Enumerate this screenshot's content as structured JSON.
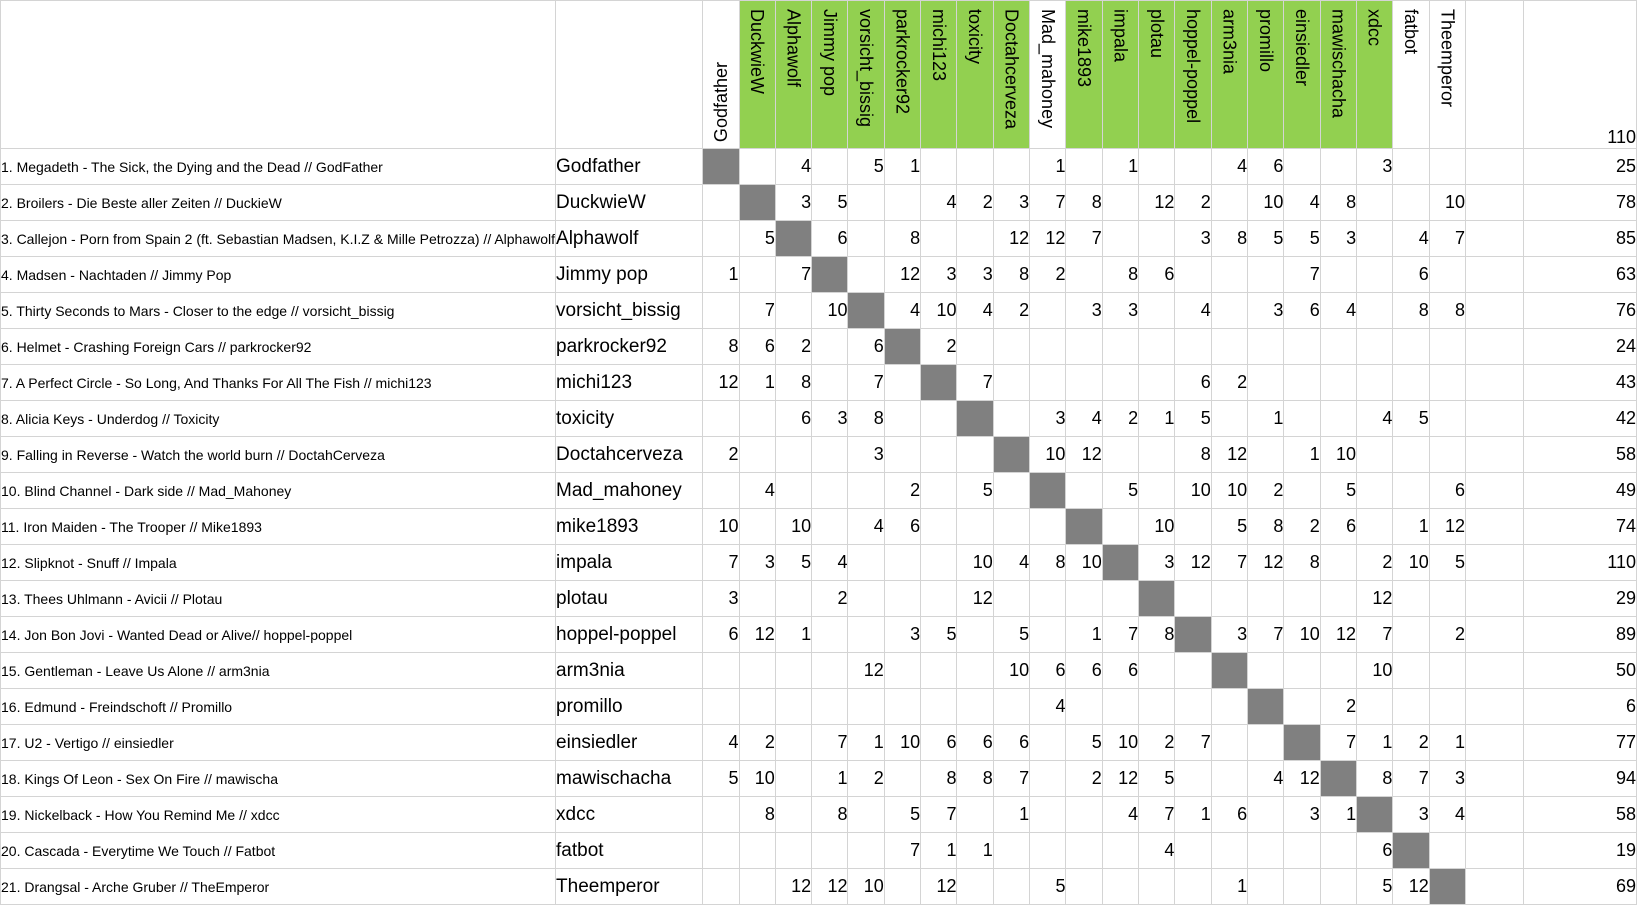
{
  "columns": [
    {
      "label": "Godfather",
      "green": false
    },
    {
      "label": "DuckwieW",
      "green": true
    },
    {
      "label": "Alphawolf",
      "green": true
    },
    {
      "label": "Jimmy pop",
      "green": true
    },
    {
      "label": "vorsicht_bissig",
      "green": true
    },
    {
      "label": "parkrocker92",
      "green": true
    },
    {
      "label": "michi123",
      "green": true
    },
    {
      "label": "toxicity",
      "green": true
    },
    {
      "label": "Doctahcerveza",
      "green": true
    },
    {
      "label": "Mad_mahoney",
      "green": false
    },
    {
      "label": "mike1893",
      "green": true
    },
    {
      "label": "impala",
      "green": true
    },
    {
      "label": "plotau",
      "green": true
    },
    {
      "label": "hoppel-poppel",
      "green": true
    },
    {
      "label": "arm3nia",
      "green": true
    },
    {
      "label": "promillo",
      "green": true
    },
    {
      "label": "einsiedler",
      "green": true
    },
    {
      "label": "mawischacha",
      "green": true
    },
    {
      "label": "xdcc",
      "green": true
    },
    {
      "label": "fatbot",
      "green": false
    },
    {
      "label": "Theemperor",
      "green": false
    }
  ],
  "header_total": "110",
  "rows": [
    {
      "song": "1. Megadeth - The Sick, the Dying and the Dead // GodFather",
      "name": "Godfather",
      "votes": [
        "",
        "",
        "4",
        "",
        "5",
        "1",
        "",
        "",
        "",
        "1",
        "",
        "1",
        "",
        "",
        "4",
        "6",
        "",
        "",
        "3",
        "",
        ""
      ],
      "total": "25"
    },
    {
      "song": "2. Broilers - Die Beste aller Zeiten // DuckieW",
      "name": "DuckwieW",
      "votes": [
        "",
        "",
        "3",
        "5",
        "",
        "",
        "4",
        "2",
        "3",
        "7",
        "8",
        "",
        "12",
        "2",
        "",
        "10",
        "4",
        "8",
        "",
        "",
        "10"
      ],
      "total": "78"
    },
    {
      "song": "3. Callejon - Porn from Spain 2 (ft. Sebastian Madsen, K.I.Z & Mille Petrozza) // Alphawolf",
      "name": "Alphawolf",
      "votes": [
        "",
        "5",
        "",
        "6",
        "",
        "8",
        "",
        "",
        "12",
        "12",
        "7",
        "",
        "",
        "3",
        "8",
        "5",
        "5",
        "3",
        "",
        "4",
        "7"
      ],
      "total": "85"
    },
    {
      "song": "4. Madsen - Nachtaden // Jimmy Pop",
      "name": "Jimmy pop",
      "votes": [
        "1",
        "",
        "7",
        "",
        "",
        "12",
        "3",
        "3",
        "8",
        "2",
        "",
        "8",
        "6",
        "",
        "",
        "",
        "7",
        "",
        "",
        "6",
        ""
      ],
      "total": "63"
    },
    {
      "song": "5. Thirty Seconds to Mars - Closer to the edge // vorsicht_bissig",
      "name": "vorsicht_bissig",
      "votes": [
        "",
        "7",
        "",
        "10",
        "",
        "4",
        "10",
        "4",
        "2",
        "",
        "3",
        "3",
        "",
        "4",
        "",
        "3",
        "6",
        "4",
        "",
        "8",
        "8"
      ],
      "total": "76"
    },
    {
      "song": "6. Helmet - Crashing Foreign Cars // parkrocker92",
      "name": "parkrocker92",
      "votes": [
        "8",
        "6",
        "2",
        "",
        "6",
        "",
        "2",
        "",
        "",
        "",
        "",
        "",
        "",
        "",
        "",
        "",
        "",
        "",
        "",
        "",
        ""
      ],
      "total": "24"
    },
    {
      "song": "7. A Perfect Circle - So Long, And Thanks For All The Fish // michi123",
      "name": "michi123",
      "votes": [
        "12",
        "1",
        "8",
        "",
        "7",
        "",
        "",
        "7",
        "",
        "",
        "",
        "",
        "",
        "6",
        "2",
        "",
        "",
        "",
        "",
        "",
        ""
      ],
      "total": "43"
    },
    {
      "song": "8. Alicia Keys - Underdog // Toxicity",
      "name": "toxicity",
      "votes": [
        "",
        "",
        "6",
        "3",
        "8",
        "",
        "",
        "",
        "",
        "3",
        "4",
        "2",
        "1",
        "5",
        "",
        "1",
        "",
        "",
        "4",
        "5",
        ""
      ],
      "total": "42"
    },
    {
      "song": "9. Falling in Reverse - Watch the world burn // DoctahCerveza",
      "name": "Doctahcerveza",
      "votes": [
        "2",
        "",
        "",
        "",
        "3",
        "",
        "",
        "",
        "",
        "10",
        "12",
        "",
        "",
        "8",
        "12",
        "",
        "1",
        "10",
        "",
        "",
        ""
      ],
      "total": "58"
    },
    {
      "song": "10. Blind Channel - Dark side // Mad_Mahoney",
      "name": "Mad_mahoney",
      "votes": [
        "",
        "4",
        "",
        "",
        "",
        "2",
        "",
        "5",
        "",
        "",
        "",
        "5",
        "",
        "10",
        "10",
        "2",
        "",
        "5",
        "",
        "",
        "6"
      ],
      "total": "49"
    },
    {
      "song": "11. Iron Maiden - The Trooper // Mike1893",
      "name": "mike1893",
      "votes": [
        "10",
        "",
        "10",
        "",
        "4",
        "6",
        "",
        "",
        "",
        "",
        "",
        "",
        "10",
        "",
        "5",
        "8",
        "2",
        "6",
        "",
        "1",
        "12"
      ],
      "total": "74"
    },
    {
      "song": "12. Slipknot - Snuff // Impala",
      "name": "impala",
      "votes": [
        "7",
        "3",
        "5",
        "4",
        "",
        "",
        "",
        "10",
        "4",
        "8",
        "10",
        "",
        "3",
        "12",
        "7",
        "12",
        "8",
        "",
        "2",
        "10",
        "5"
      ],
      "total": "110"
    },
    {
      "song": "13. Thees Uhlmann - Avicii // Plotau",
      "name": "plotau",
      "votes": [
        "3",
        "",
        "",
        "2",
        "",
        "",
        "",
        "12",
        "",
        "",
        "",
        "",
        "",
        "",
        "",
        "",
        "",
        "",
        "12",
        "",
        ""
      ],
      "total": "29"
    },
    {
      "song": "14. Jon Bon Jovi - Wanted Dead or Alive// hoppel-poppel",
      "name": "hoppel-poppel",
      "votes": [
        "6",
        "12",
        "1",
        "",
        "",
        "3",
        "5",
        "",
        "5",
        "",
        "1",
        "7",
        "8",
        "",
        "3",
        "7",
        "10",
        "12",
        "7",
        "",
        "2"
      ],
      "total": "89"
    },
    {
      "song": "15. Gentleman - Leave Us Alone // arm3nia",
      "name": "arm3nia",
      "votes": [
        "",
        "",
        "",
        "",
        "12",
        "",
        "",
        "",
        "10",
        "6",
        "6",
        "6",
        "",
        "",
        "",
        "",
        "",
        "",
        "10",
        "",
        ""
      ],
      "total": "50"
    },
    {
      "song": "16. Edmund - Freindschoft // Promillo",
      "name": "promillo",
      "votes": [
        "",
        "",
        "",
        "",
        "",
        "",
        "",
        "",
        "",
        "4",
        "",
        "",
        "",
        "",
        "",
        "",
        "",
        "2",
        "",
        "",
        ""
      ],
      "total": "6"
    },
    {
      "song": "17. U2 - Vertigo // einsiedler",
      "name": "einsiedler",
      "votes": [
        "4",
        "2",
        "",
        "7",
        "1",
        "10",
        "6",
        "6",
        "6",
        "",
        "5",
        "10",
        "2",
        "7",
        "",
        "",
        "",
        "7",
        "1",
        "2",
        "1"
      ],
      "total": "77"
    },
    {
      "song": "18. Kings Of Leon - Sex On Fire // mawischa",
      "name": "mawischacha",
      "votes": [
        "5",
        "10",
        "",
        "1",
        "2",
        "",
        "8",
        "8",
        "7",
        "",
        "2",
        "12",
        "5",
        "",
        "",
        "4",
        "12",
        "",
        "8",
        "7",
        "3"
      ],
      "total": "94"
    },
    {
      "song": "19. Nickelback - How You Remind Me // xdcc",
      "name": "xdcc",
      "votes": [
        "",
        "8",
        "",
        "8",
        "",
        "5",
        "7",
        "",
        "1",
        "",
        "",
        "4",
        "7",
        "1",
        "6",
        "",
        "3",
        "1",
        "",
        "3",
        "4"
      ],
      "total": "58"
    },
    {
      "song": "20. Cascada - Everytime We Touch // Fatbot",
      "name": "fatbot",
      "votes": [
        "",
        "",
        "",
        "",
        "",
        "7",
        "1",
        "1",
        "",
        "",
        "",
        "",
        "4",
        "",
        "",
        "",
        "",
        "",
        "6",
        "",
        ""
      ],
      "total": "19"
    },
    {
      "song": "21. Drangsal - Arche Gruber // TheEmperor",
      "name": "Theemperor",
      "votes": [
        "",
        "",
        "12",
        "12",
        "10",
        "",
        "12",
        "",
        "",
        "5",
        "",
        "",
        "",
        "",
        "1",
        "",
        "",
        "",
        "5",
        "12",
        ""
      ],
      "total": "69"
    }
  ],
  "colors": {
    "header_green": "#92d050",
    "self_cell": "#808080",
    "grid": "#d4d4d4"
  }
}
